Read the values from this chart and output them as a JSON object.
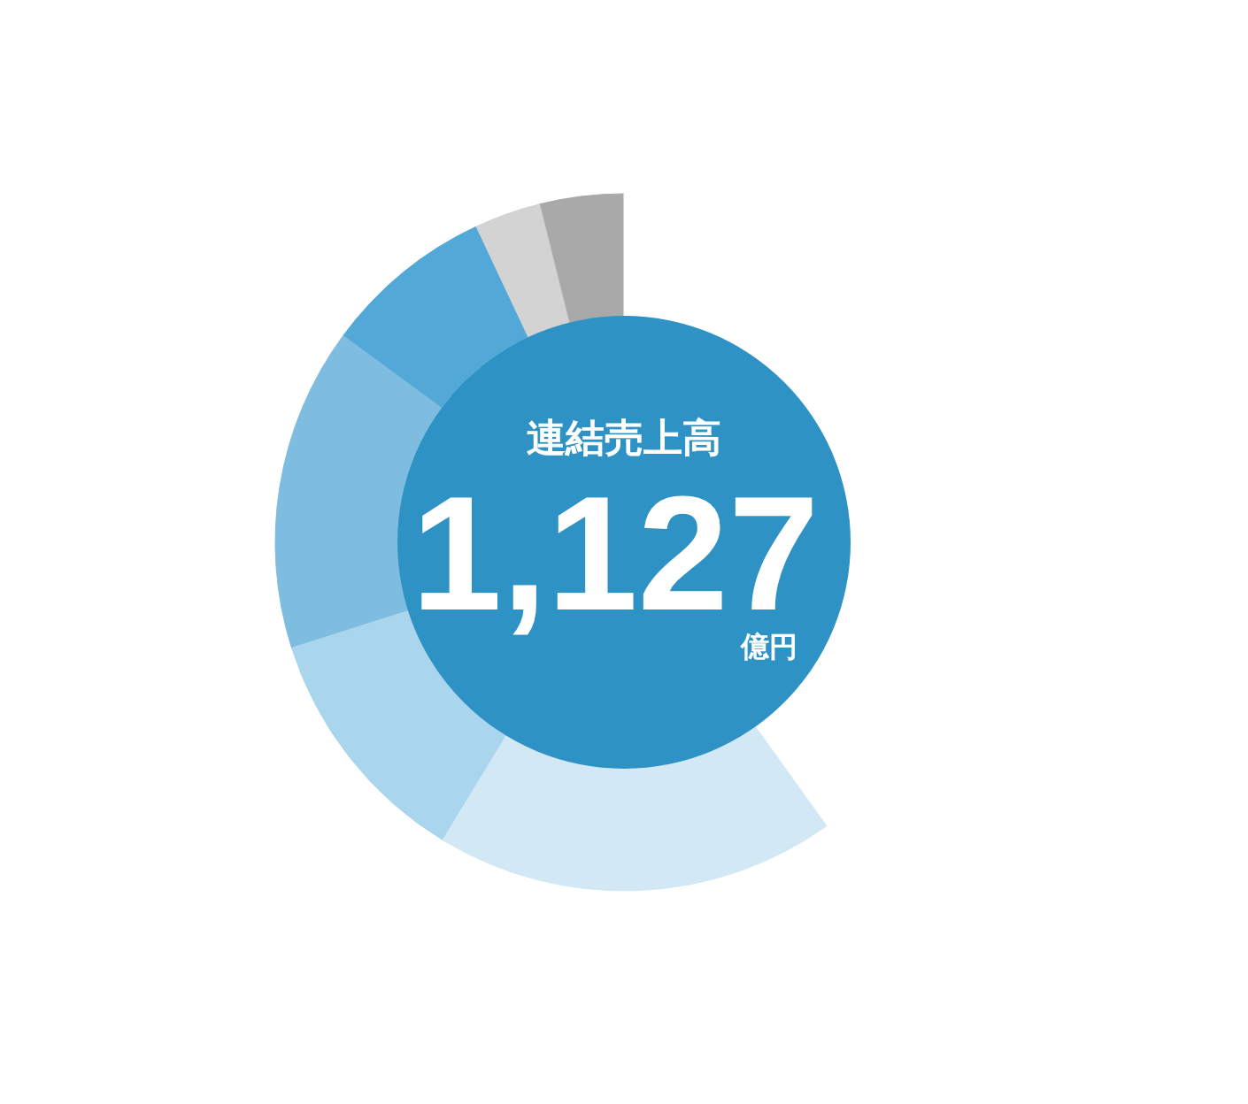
{
  "chart_data": {
    "type": "donut",
    "categories": [
      null,
      null,
      null,
      null,
      null,
      null,
      null
    ],
    "values": [
      3.9,
      3.1,
      7.9,
      15.0,
      11.4,
      18.6,
      40.1
    ],
    "colors": [
      "#a9a9a9",
      "#d3d3d3",
      "#52a9d8",
      "#7fbde0",
      "#aad6ed",
      "#d2e8f5",
      "#ffffff"
    ],
    "annotations": [
      "連結売上高",
      "1,127",
      "億円"
    ]
  }
}
